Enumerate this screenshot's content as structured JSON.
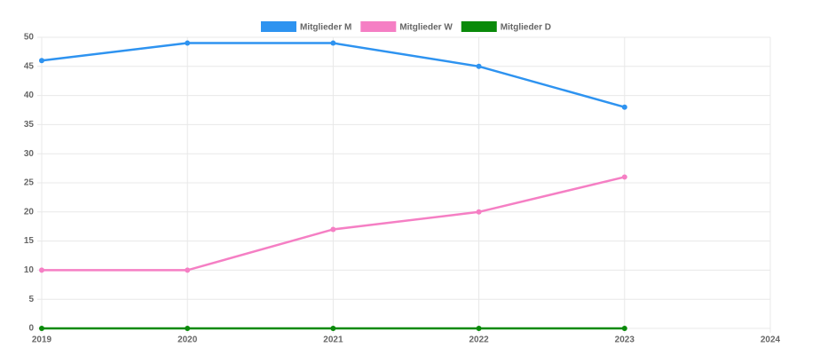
{
  "chart_data": {
    "type": "line",
    "categories": [
      "2019",
      "2020",
      "2021",
      "2022",
      "2023",
      "2024"
    ],
    "series": [
      {
        "name": "Mitglieder M",
        "color": "#2e93f0",
        "values": [
          46,
          49,
          49,
          45,
          38,
          null
        ]
      },
      {
        "name": "Mitglieder W",
        "color": "#f57fc4",
        "values": [
          10,
          10,
          17,
          20,
          26,
          null
        ]
      },
      {
        "name": "Mitglieder D",
        "color": "#0a8a0a",
        "values": [
          0,
          0,
          0,
          0,
          0,
          null
        ]
      }
    ],
    "ylim": [
      0,
      50
    ],
    "yticks": [
      0,
      5,
      10,
      15,
      20,
      25,
      30,
      35,
      40,
      45,
      50
    ],
    "grid": true,
    "legend": "top"
  }
}
